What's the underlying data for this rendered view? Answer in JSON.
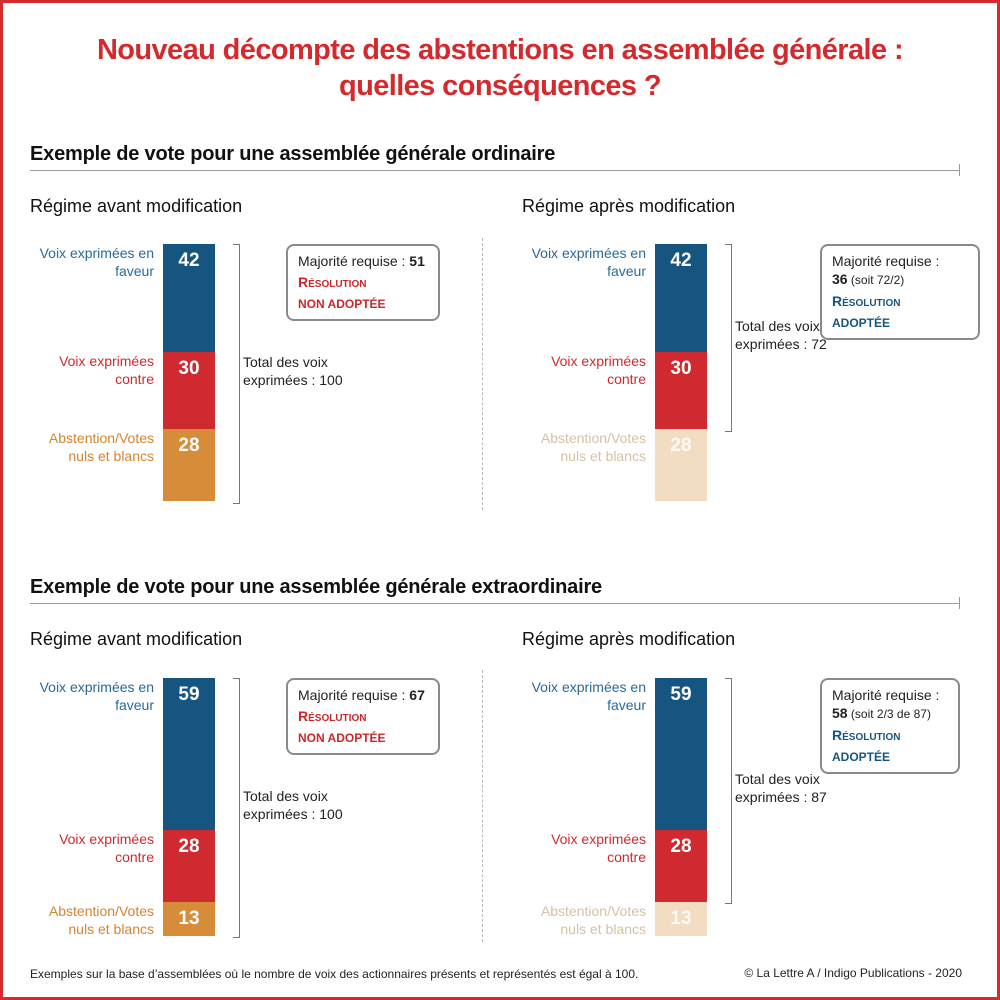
{
  "title_line1": "Nouveau décompte des abstentions en assemblée générale :",
  "title_line2": "quelles conséquences ?",
  "colors": {
    "favor": "#165580",
    "against": "#cf2a30",
    "abstention": "#d68c38",
    "abstention_faded": "#f2dcc2",
    "abstention_faded_text": "#d7c1a5",
    "favor_text": "#2a6a98",
    "against_text": "#cf2a30",
    "abstention_text": "#d38532"
  },
  "sections": [
    {
      "title": "Exemple de vote pour une assemblée générale ordinaire",
      "panels": [
        {
          "heading": "Régime avant modification",
          "faded_abstention": false,
          "favor_label": "Voix exprimées en faveur",
          "against_label": "Voix exprimées contre",
          "abstention_label": "Abstention/Votes nuls et blancs",
          "total_label": "Total des voix exprimées : 100",
          "box": {
            "majority_label": "Majorité requise : ",
            "majority_value": "51",
            "majority_note": "",
            "result_line1": "Résolution",
            "result_line2": "non adoptée",
            "result_color": "red"
          }
        },
        {
          "heading": "Régime après modification",
          "faded_abstention": true,
          "favor_label": "Voix exprimées en faveur",
          "against_label": "Voix exprimées contre",
          "abstention_label": "Abstention/Votes nuls et blancs",
          "total_label": "Total des voix exprimées : 72",
          "box": {
            "majority_label": "Majorité requise :",
            "majority_value": "36",
            "majority_note": "(soit 72/2)",
            "result_line1": "Résolution",
            "result_line2": "adoptée",
            "result_color": "blue"
          }
        }
      ]
    },
    {
      "title": "Exemple de vote pour une assemblée générale extraordinaire",
      "panels": [
        {
          "heading": "Régime avant modification",
          "faded_abstention": false,
          "favor_label": "Voix exprimées en faveur",
          "against_label": "Voix exprimées contre",
          "abstention_label": "Abstention/Votes nuls et blancs",
          "total_label": "Total des voix exprimées : 100",
          "box": {
            "majority_label": "Majorité requise : ",
            "majority_value": "67",
            "majority_note": "",
            "result_line1": "Résolution",
            "result_line2": "non adoptée",
            "result_color": "red"
          }
        },
        {
          "heading": "Régime après modification",
          "faded_abstention": true,
          "favor_label": "Voix exprimées en faveur",
          "against_label": "Voix exprimées contre",
          "abstention_label": "Abstention/Votes nuls et blancs",
          "total_label": "Total des voix exprimées : 87",
          "box": {
            "majority_label": "Majorité requise :",
            "majority_value": "58",
            "majority_note": "(soit 2/3 de 87)",
            "result_line1": "Résolution",
            "result_line2": "adoptée",
            "result_color": "blue"
          }
        }
      ]
    }
  ],
  "footnote": "Exemples sur la base d’assemblées où le nombre de voix des actionnaires présents et représentés est égal à 100.",
  "credit": "© La Lettre A / Indigo Publications - 2020",
  "chart_data": [
    {
      "type": "bar",
      "stacked": true,
      "section": "Exemple de vote pour une assemblée générale ordinaire",
      "categories": [
        "Régime avant modification",
        "Régime après modification"
      ],
      "series": [
        {
          "name": "Voix exprimées en faveur",
          "values": [
            42,
            42
          ]
        },
        {
          "name": "Voix exprimées contre",
          "values": [
            30,
            30
          ]
        },
        {
          "name": "Abstention/Votes nuls et blancs",
          "values": [
            28,
            28
          ]
        }
      ]
    },
    {
      "type": "bar",
      "stacked": true,
      "section": "Exemple de vote pour une assemblée générale extraordinaire",
      "categories": [
        "Régime avant modification",
        "Régime après modification"
      ],
      "series": [
        {
          "name": "Voix exprimées en faveur",
          "values": [
            59,
            59
          ]
        },
        {
          "name": "Voix exprimées contre",
          "values": [
            28,
            28
          ]
        },
        {
          "name": "Abstention/Votes nuls et blancs",
          "values": [
            13,
            13
          ]
        }
      ]
    }
  ]
}
